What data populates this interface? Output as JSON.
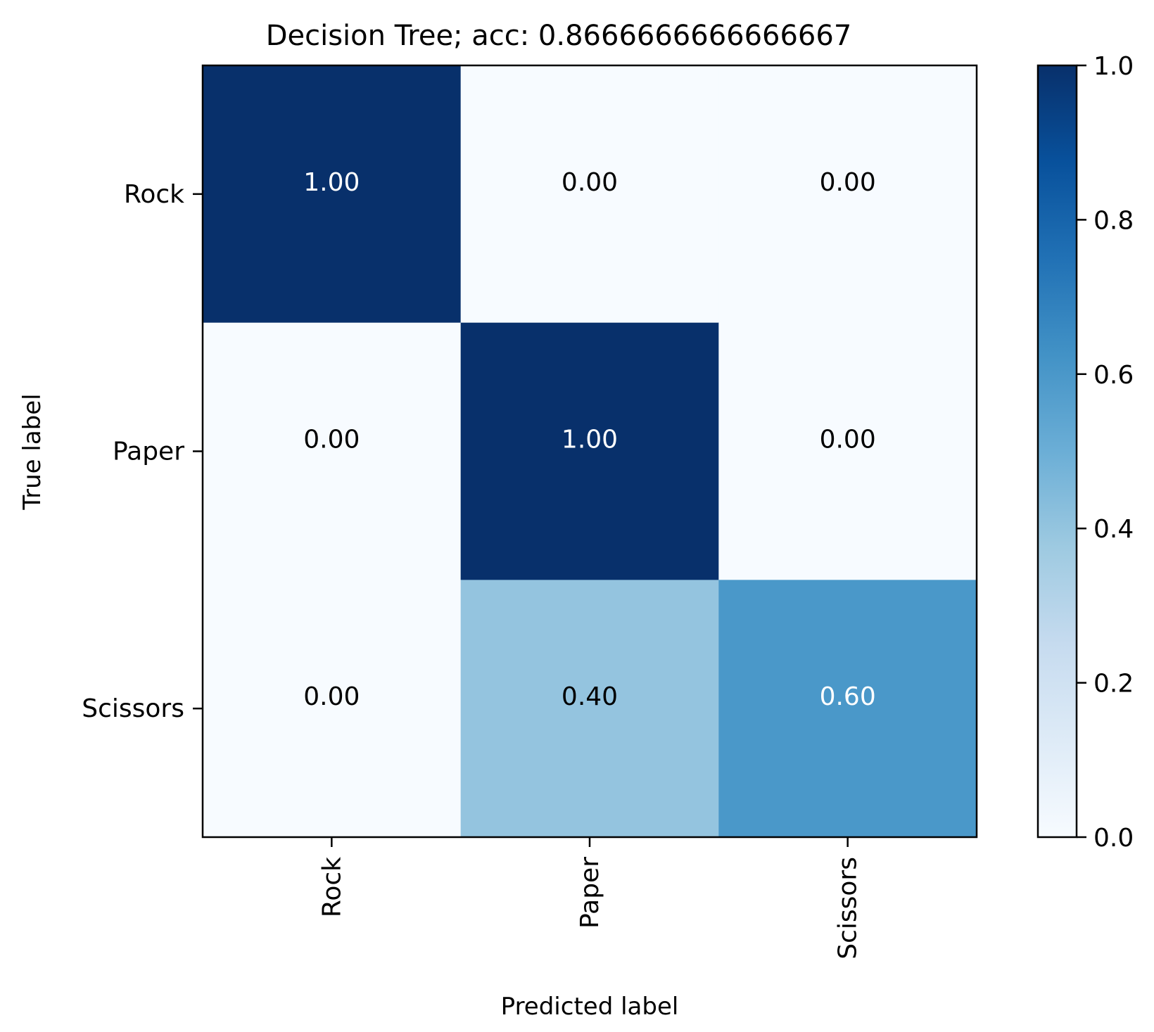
{
  "chart_data": {
    "type": "heatmap",
    "title": "Decision Tree; acc: 0.8666666666666667",
    "xlabel": "Predicted label",
    "ylabel": "True label",
    "x_categories": [
      "Rock",
      "Paper",
      "Scissors"
    ],
    "y_categories": [
      "Rock",
      "Paper",
      "Scissors"
    ],
    "values": [
      [
        1.0,
        0.0,
        0.0
      ],
      [
        0.0,
        1.0,
        0.0
      ],
      [
        0.0,
        0.4,
        0.6
      ]
    ],
    "cell_labels": [
      [
        "1.00",
        "0.00",
        "0.00"
      ],
      [
        "0.00",
        "1.00",
        "0.00"
      ],
      [
        "0.00",
        "0.40",
        "0.60"
      ]
    ],
    "colormap": "Blues",
    "colorbar": {
      "range": [
        0.0,
        1.0
      ],
      "ticks": [
        0.0,
        0.2,
        0.4,
        0.6,
        0.8,
        1.0
      ],
      "tick_labels": [
        "0.0",
        "0.2",
        "0.4",
        "0.6",
        "0.8",
        "1.0"
      ]
    }
  }
}
